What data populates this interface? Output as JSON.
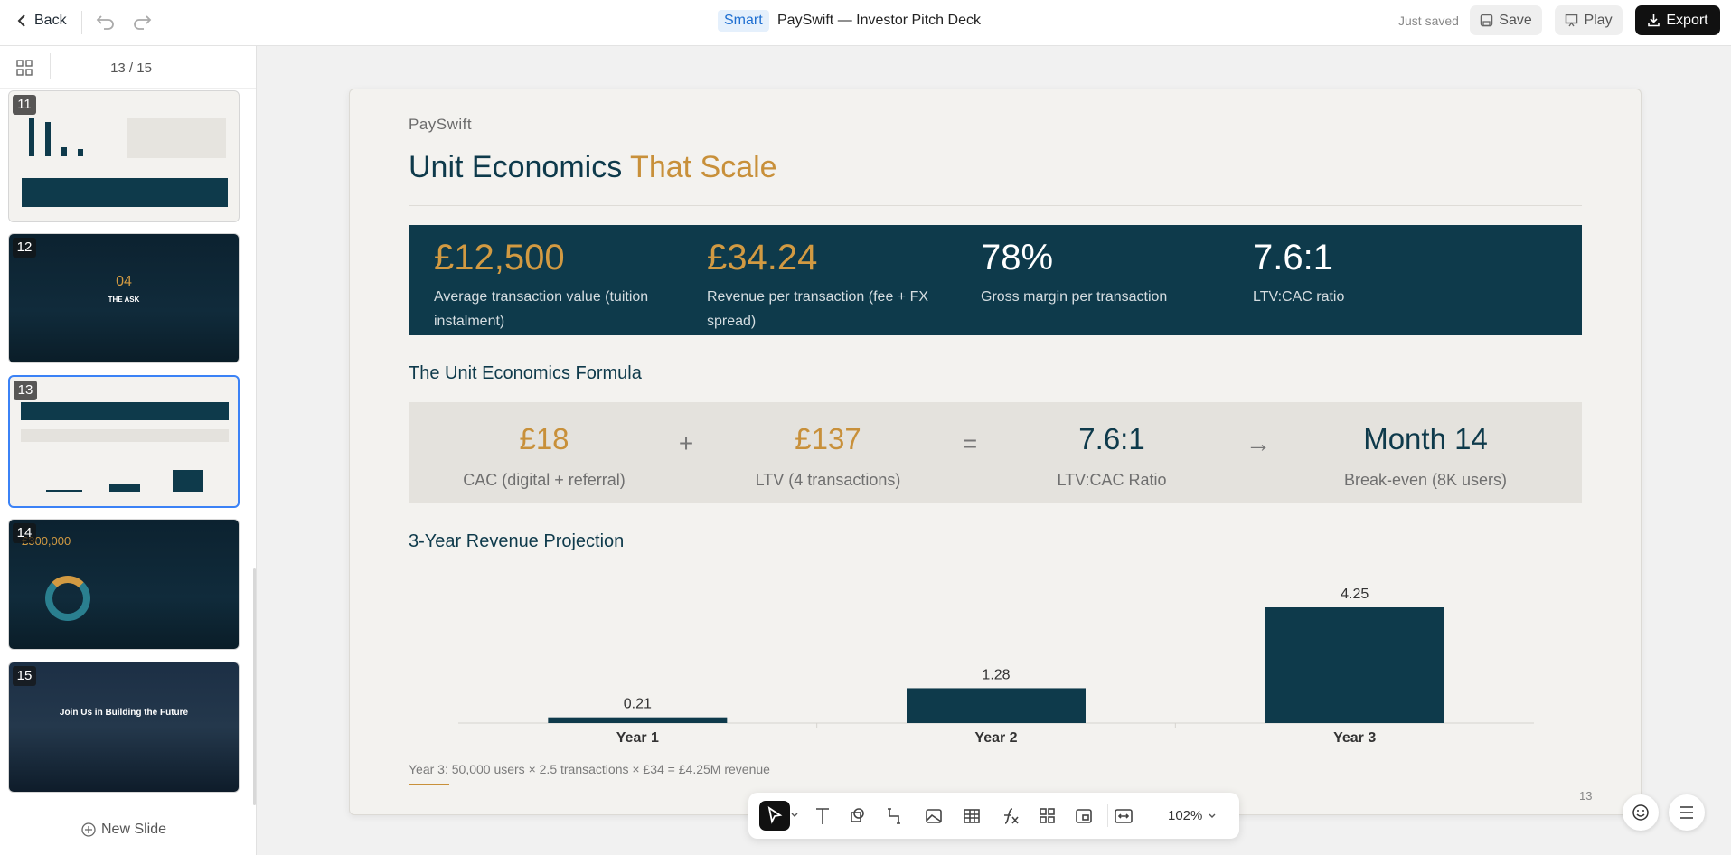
{
  "topbar": {
    "back": "Back",
    "badge": "Smart",
    "title": "PaySwift — Investor Pitch Deck",
    "status": "Just saved",
    "save": "Save",
    "play": "Play",
    "export": "Export"
  },
  "sidebar": {
    "counter": "13 / 15",
    "thumbnails": [
      {
        "number": "11"
      },
      {
        "number": "12",
        "heading": "04",
        "subheading": "THE ASK"
      },
      {
        "number": "13"
      },
      {
        "number": "14",
        "heading": "£300,000"
      },
      {
        "number": "15",
        "heading": "Join Us in Building the Future"
      }
    ],
    "new_slide": "New Slide"
  },
  "slide": {
    "brand": "PaySwift",
    "title": "Unit Economics",
    "title_accent": "That Scale",
    "metrics": [
      {
        "value": "£12,500",
        "label": "Average transaction value (tuition instalment)"
      },
      {
        "value": "£34.24",
        "label": "Revenue per transaction (fee + FX spread)"
      },
      {
        "value": "78%",
        "label": "Gross margin per transaction"
      },
      {
        "value": "7.6:1",
        "label": "LTV:CAC ratio"
      }
    ],
    "formula_heading": "The Unit Economics Formula",
    "formula": [
      {
        "value": "£18",
        "label": "CAC (digital + referral)"
      },
      {
        "value": "£137",
        "label": "LTV (4 transactions)"
      },
      {
        "value": "7.6:1",
        "label": "LTV:CAC Ratio"
      },
      {
        "value": "Month 14",
        "label": "Break-even (8K users)"
      }
    ],
    "operators": [
      "+",
      "=",
      "→"
    ],
    "footnote": "Year 3: 50,000 users × 2.5 transactions × £34 = £4.25M revenue",
    "page_number": "13"
  },
  "chart_data": {
    "type": "bar",
    "title": "3-Year Revenue Projection",
    "categories": [
      "Year 1",
      "Year 2",
      "Year 3"
    ],
    "values": [
      0.21,
      1.28,
      4.25
    ],
    "color": "#0e3a4b"
  },
  "toolbar": {
    "zoom": "102%"
  }
}
